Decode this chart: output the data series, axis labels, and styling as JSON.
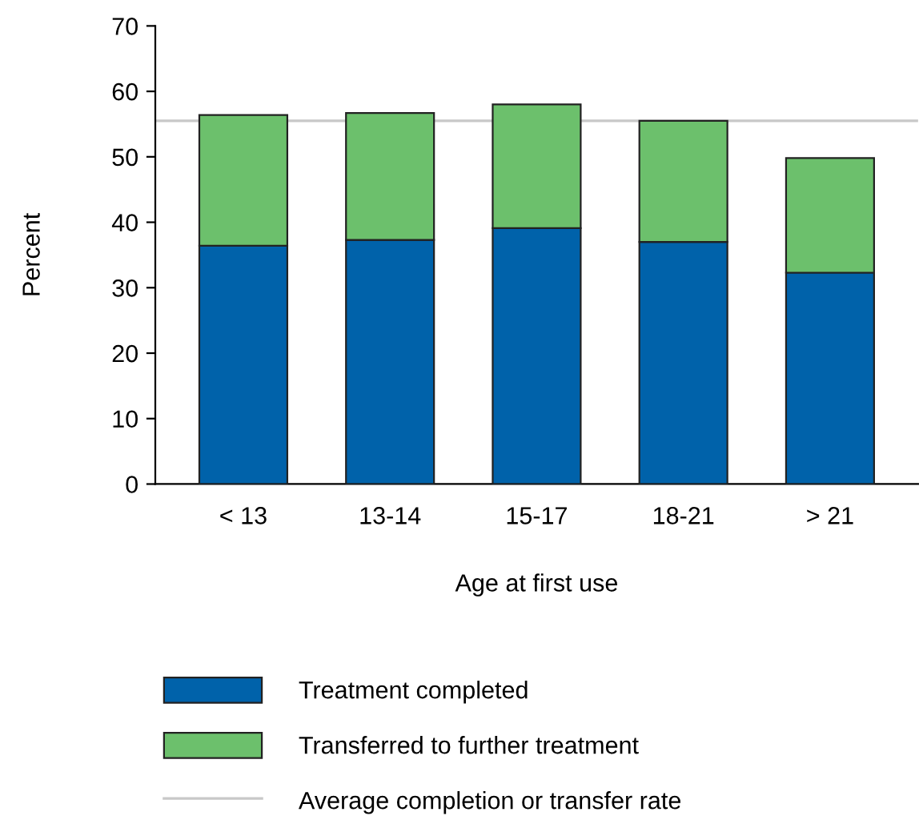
{
  "chart_data": {
    "type": "bar",
    "stacked": true,
    "xlabel": "Age at first use",
    "ylabel": "Percent",
    "categories": [
      "< 13",
      "13-14",
      "15-17",
      "18-21",
      "> 21"
    ],
    "series": [
      {
        "name": "Treatment completed",
        "color": "#0062aa",
        "values": [
          36.4,
          37.3,
          39.1,
          37.0,
          32.3
        ]
      },
      {
        "name": "Transferred to further treatment",
        "color": "#6cc06c",
        "values": [
          20.0,
          19.4,
          18.9,
          18.5,
          17.5
        ]
      }
    ],
    "ref_lines": [
      {
        "axis": "y",
        "value": 55.5,
        "label": "Average completion or transfer rate",
        "color": "#c8c8c8"
      }
    ],
    "ylim": [
      0,
      70
    ],
    "yticks": [
      0,
      10,
      20,
      30,
      40,
      50,
      60,
      70
    ],
    "grid": false,
    "legend": "bottom"
  }
}
